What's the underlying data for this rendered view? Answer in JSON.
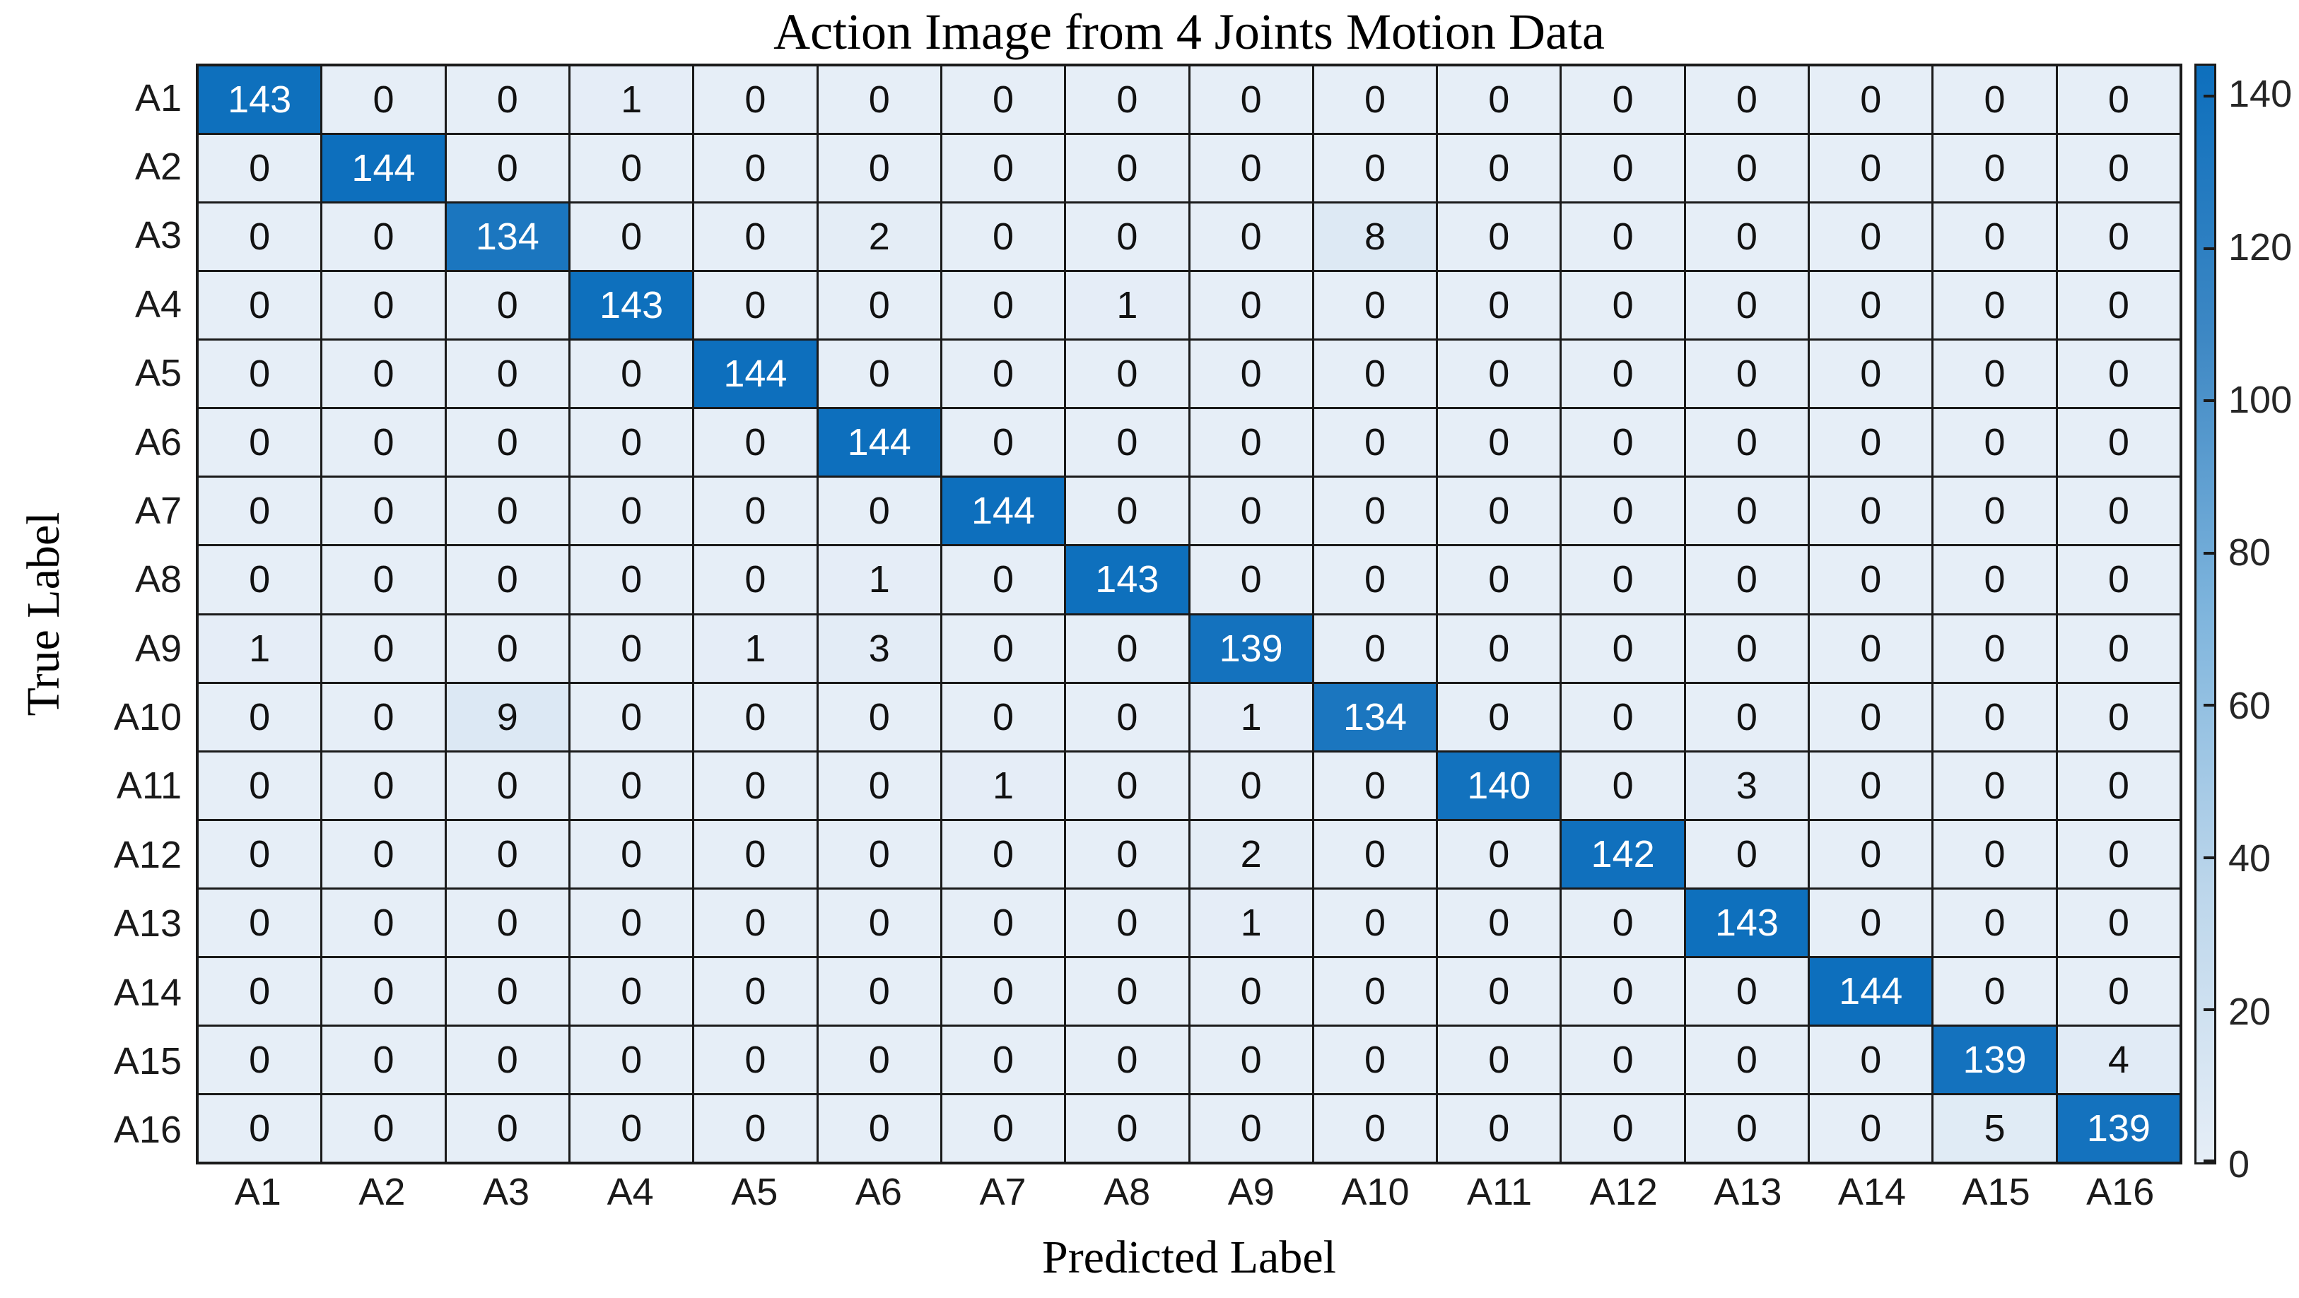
{
  "chart_data": {
    "type": "heatmap",
    "title": "Action Image from 4 Joints Motion Data",
    "xlabel": "Predicted Label",
    "ylabel": "True Label",
    "x_labels": [
      "A1",
      "A2",
      "A3",
      "A4",
      "A5",
      "A6",
      "A7",
      "A8",
      "A9",
      "A10",
      "A11",
      "A12",
      "A13",
      "A14",
      "A15",
      "A16"
    ],
    "y_labels": [
      "A1",
      "A2",
      "A3",
      "A4",
      "A5",
      "A6",
      "A7",
      "A8",
      "A9",
      "A10",
      "A11",
      "A12",
      "A13",
      "A14",
      "A15",
      "A16"
    ],
    "matrix": [
      [
        143,
        0,
        0,
        1,
        0,
        0,
        0,
        0,
        0,
        0,
        0,
        0,
        0,
        0,
        0,
        0
      ],
      [
        0,
        144,
        0,
        0,
        0,
        0,
        0,
        0,
        0,
        0,
        0,
        0,
        0,
        0,
        0,
        0
      ],
      [
        0,
        0,
        134,
        0,
        0,
        2,
        0,
        0,
        0,
        8,
        0,
        0,
        0,
        0,
        0,
        0
      ],
      [
        0,
        0,
        0,
        143,
        0,
        0,
        0,
        1,
        0,
        0,
        0,
        0,
        0,
        0,
        0,
        0
      ],
      [
        0,
        0,
        0,
        0,
        144,
        0,
        0,
        0,
        0,
        0,
        0,
        0,
        0,
        0,
        0,
        0
      ],
      [
        0,
        0,
        0,
        0,
        0,
        144,
        0,
        0,
        0,
        0,
        0,
        0,
        0,
        0,
        0,
        0
      ],
      [
        0,
        0,
        0,
        0,
        0,
        0,
        144,
        0,
        0,
        0,
        0,
        0,
        0,
        0,
        0,
        0
      ],
      [
        0,
        0,
        0,
        0,
        0,
        1,
        0,
        143,
        0,
        0,
        0,
        0,
        0,
        0,
        0,
        0
      ],
      [
        1,
        0,
        0,
        0,
        1,
        3,
        0,
        0,
        139,
        0,
        0,
        0,
        0,
        0,
        0,
        0
      ],
      [
        0,
        0,
        9,
        0,
        0,
        0,
        0,
        0,
        1,
        134,
        0,
        0,
        0,
        0,
        0,
        0
      ],
      [
        0,
        0,
        0,
        0,
        0,
        0,
        1,
        0,
        0,
        0,
        140,
        0,
        3,
        0,
        0,
        0
      ],
      [
        0,
        0,
        0,
        0,
        0,
        0,
        0,
        0,
        2,
        0,
        0,
        142,
        0,
        0,
        0,
        0
      ],
      [
        0,
        0,
        0,
        0,
        0,
        0,
        0,
        0,
        1,
        0,
        0,
        0,
        143,
        0,
        0,
        0
      ],
      [
        0,
        0,
        0,
        0,
        0,
        0,
        0,
        0,
        0,
        0,
        0,
        0,
        0,
        144,
        0,
        0
      ],
      [
        0,
        0,
        0,
        0,
        0,
        0,
        0,
        0,
        0,
        0,
        0,
        0,
        0,
        0,
        139,
        4
      ],
      [
        0,
        0,
        0,
        0,
        0,
        0,
        0,
        0,
        0,
        0,
        0,
        0,
        0,
        0,
        5,
        139
      ]
    ],
    "value_range": [
      0,
      144
    ],
    "grid_on": true,
    "legend_position": "none",
    "colorbar": {
      "position": "right",
      "ticks": [
        0,
        20,
        40,
        60,
        80,
        100,
        120,
        140
      ]
    },
    "colormap": {
      "name": "blues",
      "stops": [
        "#e6eef7",
        "#bcd6eb",
        "#7fb5dd",
        "#3e88c4",
        "#0d6fbd"
      ]
    },
    "colors": {
      "grid_line": "#1a1a1a",
      "cell_text_dark": "#111111",
      "cell_text_light": "#ffffff",
      "accent_max": "#0d6fbd",
      "accent_min": "#e6eef7"
    }
  }
}
